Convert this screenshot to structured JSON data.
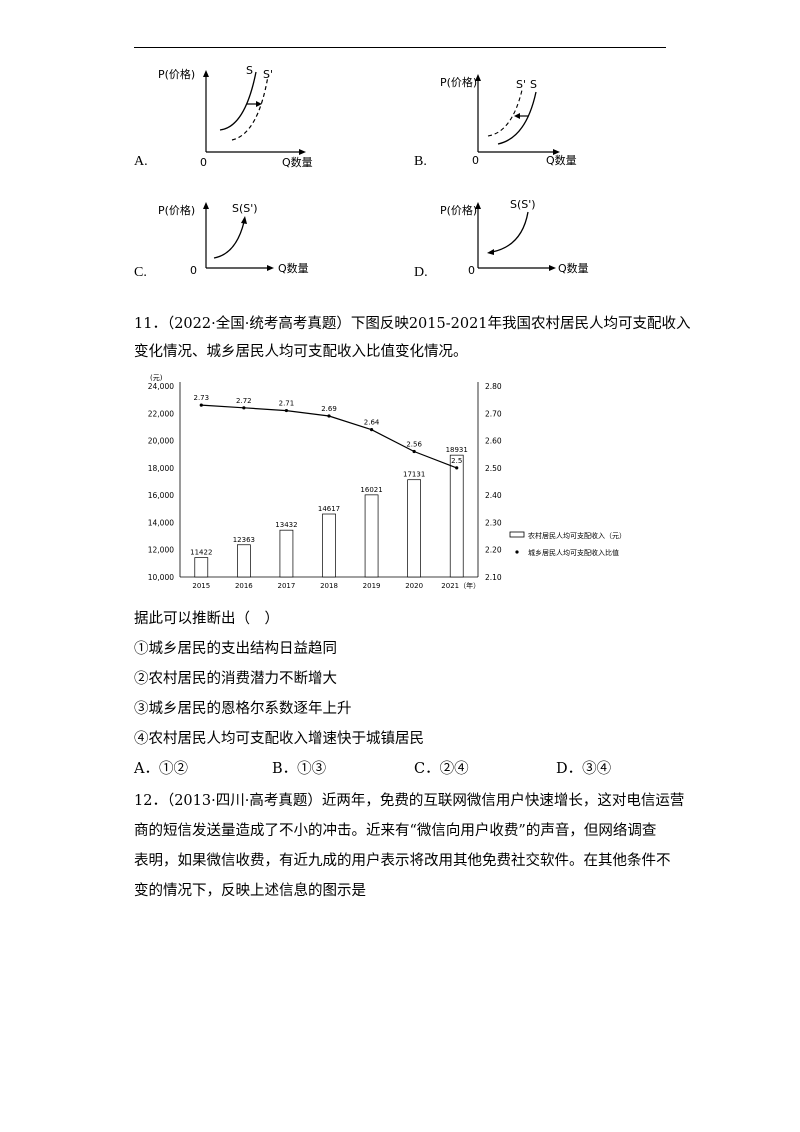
{
  "options_graphs": [
    {
      "letter": "A.",
      "ylabel": "P(价格)",
      "xlabel": "Q数量",
      "origin": "0",
      "curve1": "S",
      "curve2": "S'"
    },
    {
      "letter": "B.",
      "ylabel": "P(价格)",
      "xlabel": "Q数量",
      "origin": "0",
      "curve1": "S'",
      "curve2": "S"
    },
    {
      "letter": "C.",
      "ylabel": "P(价格)",
      "xlabel": "Q数量",
      "origin": "0",
      "curve1": "S(S')"
    },
    {
      "letter": "D.",
      "ylabel": "P(价格)",
      "xlabel": "Q数量",
      "origin": "0",
      "curve1": "S(S')"
    }
  ],
  "q11": {
    "line1": "11．（2022·全国·统考高考真题）下图反映2015-2021年我国农村居民人均可支配收入",
    "line2": "变化情况、城乡居民人均可支配收入比值变化情况。",
    "prompt": "据此可以推断出（　）",
    "statements": [
      "①城乡居民的支出结构日益趋同",
      "②农村居民的消费潜力不断增大",
      "③城乡居民的恩格尔系数逐年上升",
      "④农村居民人均可支配收入增速快于城镇居民"
    ],
    "choices": [
      "A．①②",
      "B．①③",
      "C．②④",
      "D．③④"
    ]
  },
  "q12": {
    "lines": [
      "12．（2013·四川·高考真题）近两年，免费的互联网微信用户快速增长，这对电信运营",
      "商的短信发送量造成了不小的冲击。近来有“微信向用户收费”的声音，但网络调查",
      "表明，如果微信收费，有近九成的用户表示将改用其他免费社交软件。在其他条件不",
      "变的情况下，反映上述信息的图示是"
    ]
  },
  "chart_data": {
    "type": "bar",
    "left_unit": "(元)",
    "categories": [
      "2015",
      "2016",
      "2017",
      "2018",
      "2019",
      "2020",
      "2021"
    ],
    "x_unit_label": "2021（年）",
    "bar_values": [
      11422,
      12363,
      13432,
      14617,
      16021,
      17131,
      18931
    ],
    "bar_labels": [
      "11422",
      "12363",
      "13432",
      "14617",
      "16021",
      "17131",
      "18931"
    ],
    "line_values": [
      2.73,
      2.72,
      2.71,
      2.69,
      2.64,
      2.56,
      2.5
    ],
    "line_labels": [
      "2.73",
      "2.72",
      "2.71",
      "2.69",
      "2.64",
      "2.56",
      "2.5"
    ],
    "y_left_ticks": [
      "24,000",
      "22,000",
      "20,000",
      "18,000",
      "16,000",
      "14,000",
      "12,000",
      "10,000"
    ],
    "y_right_ticks": [
      "2.80",
      "2.70",
      "2.60",
      "2.50",
      "2.40",
      "2.30",
      "2.20",
      "2.10"
    ],
    "ylim_left": [
      10000,
      24000
    ],
    "ylim_right": [
      2.1,
      2.8
    ],
    "legend": [
      "农村居民人均可支配收入（元）",
      "城乡居民人均可支配收入比值"
    ],
    "legend_position": "right",
    "grid": false
  }
}
